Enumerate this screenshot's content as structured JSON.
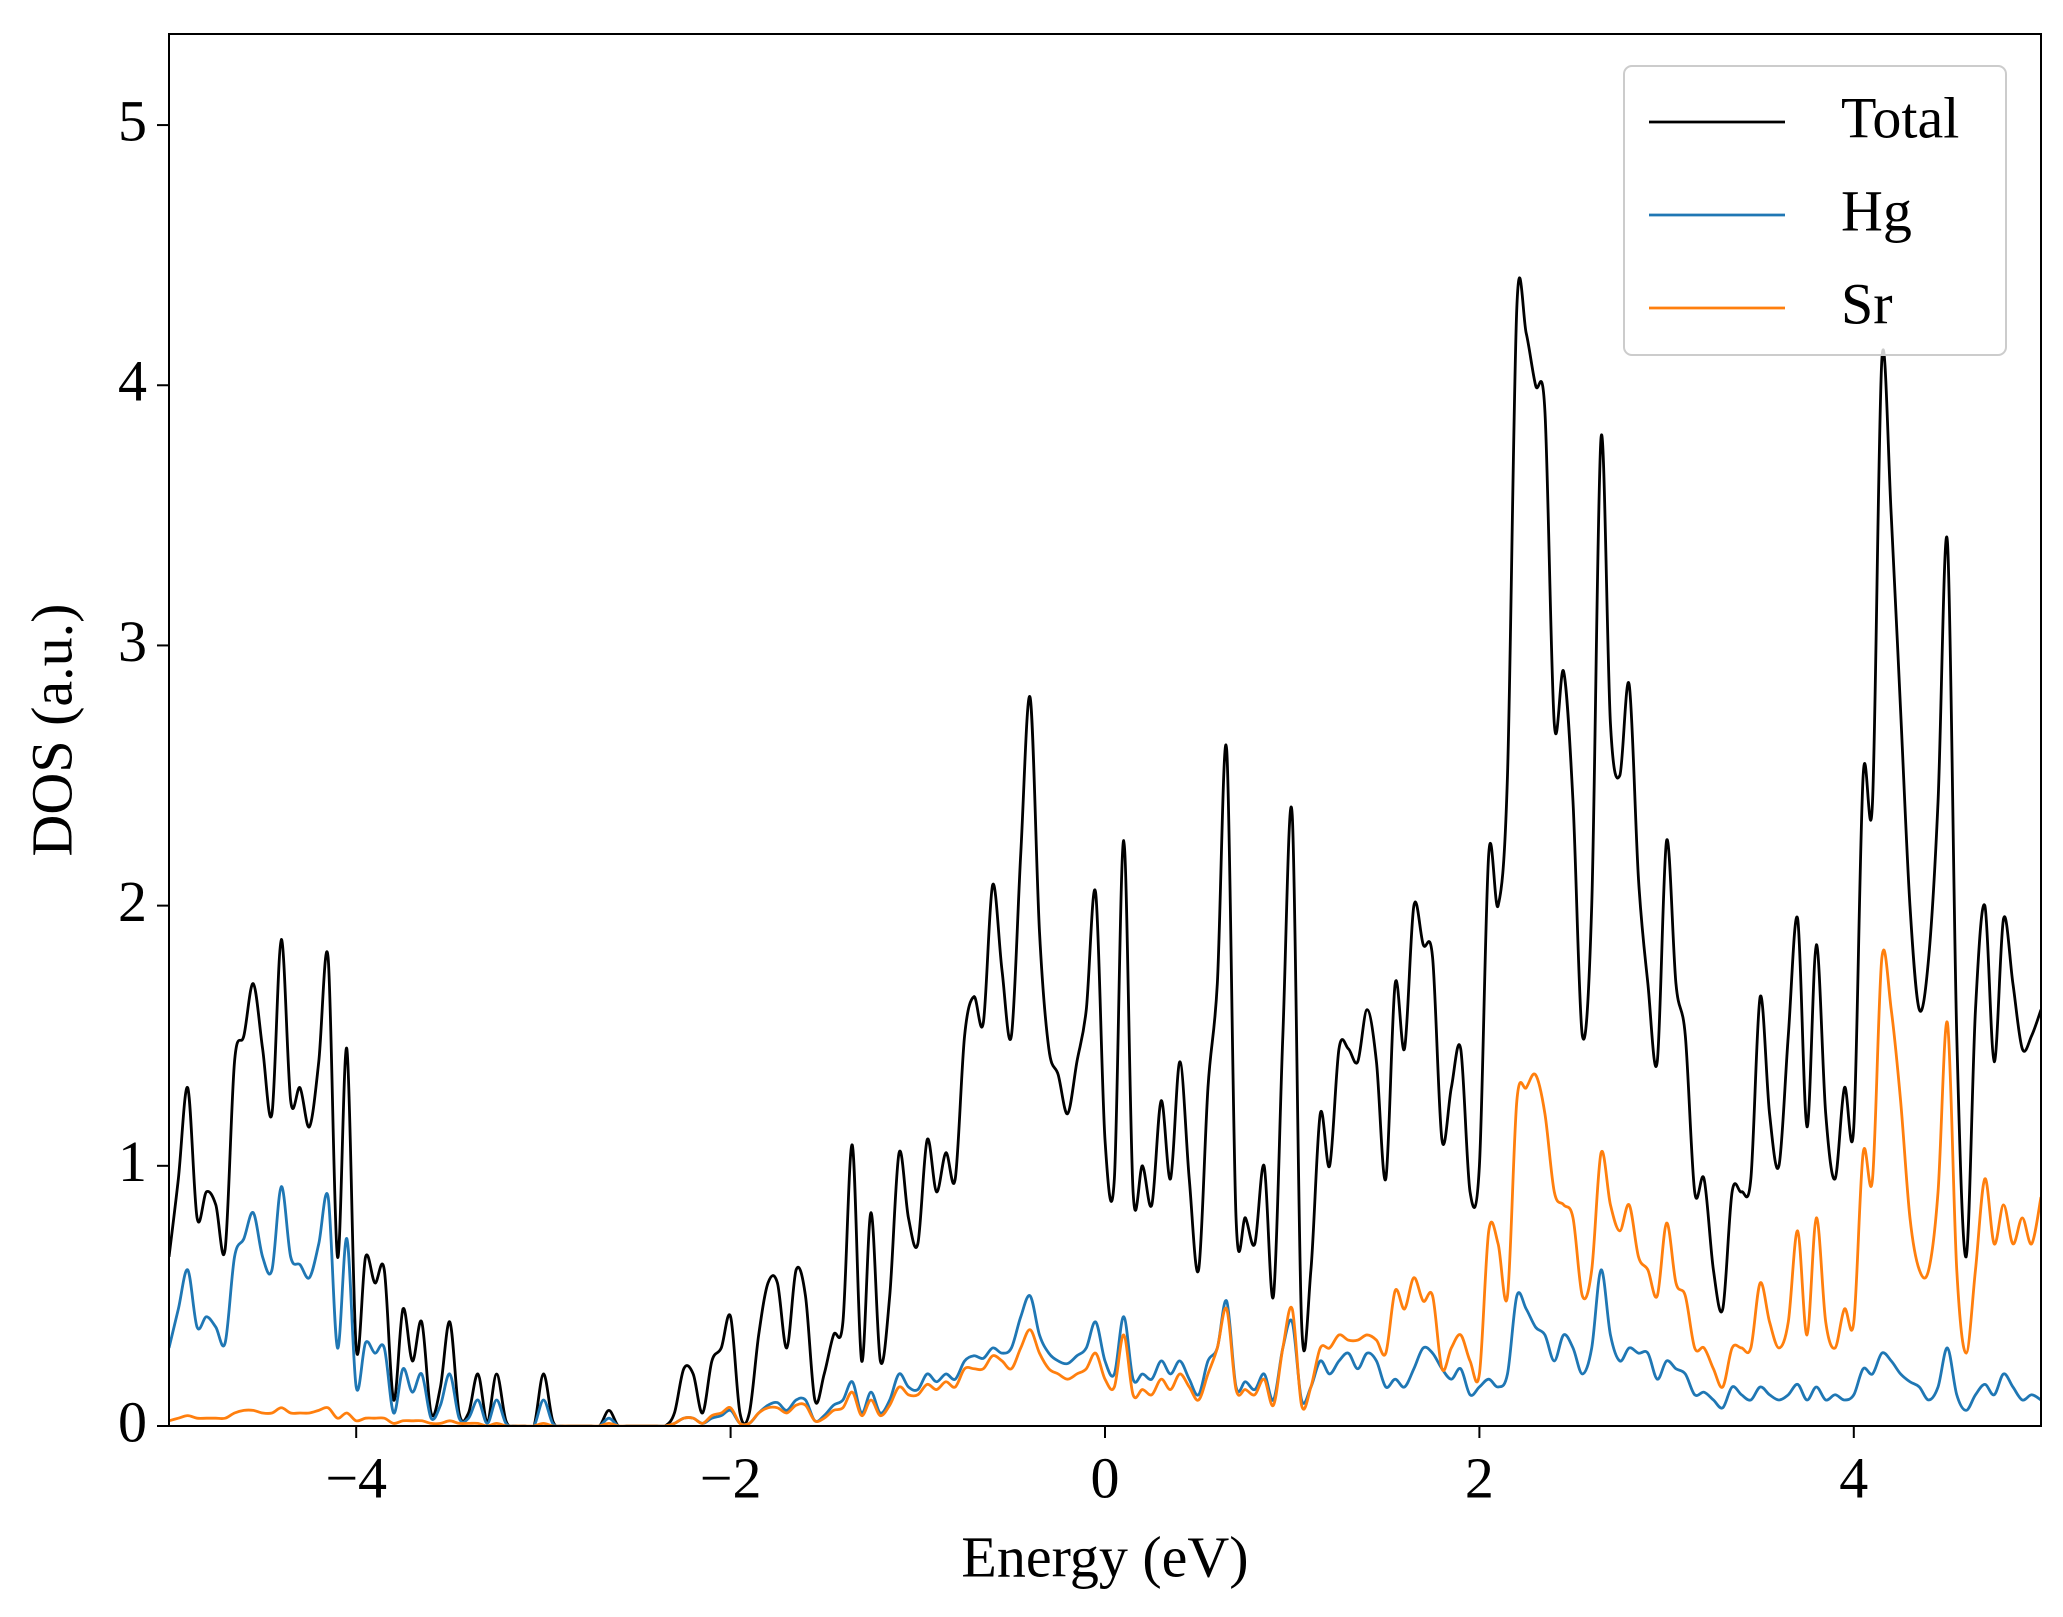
{
  "chart_data": {
    "type": "line",
    "xlabel": "Energy (eV)",
    "ylabel": "DOS (a.u.)",
    "xlim": [
      -5,
      5
    ],
    "ylim": [
      0,
      5.35
    ],
    "xticks": [
      {
        "value": -4,
        "label": "−4"
      },
      {
        "value": -2,
        "label": "−2"
      },
      0,
      2,
      4
    ],
    "yticks": [
      0,
      1,
      2,
      3,
      4,
      5
    ],
    "legend": "upper right",
    "x": [
      -5,
      -4.95,
      -4.9,
      -4.85,
      -4.8,
      -4.75,
      -4.7,
      -4.65,
      -4.6,
      -4.55,
      -4.5,
      -4.45,
      -4.4,
      -4.35,
      -4.3,
      -4.25,
      -4.2,
      -4.15,
      -4.1,
      -4.05,
      -4,
      -3.95,
      -3.9,
      -3.85,
      -3.8,
      -3.75,
      -3.7,
      -3.65,
      -3.6,
      -3.55,
      -3.5,
      -3.45,
      -3.4,
      -3.35,
      -3.3,
      -3.25,
      -3.2,
      -3.15,
      -3.1,
      -3.05,
      -3,
      -2.95,
      -2.9,
      -2.85,
      -2.8,
      -2.75,
      -2.7,
      -2.65,
      -2.6,
      -2.55,
      -2.5,
      -2.45,
      -2.4,
      -2.35,
      -2.3,
      -2.25,
      -2.2,
      -2.15,
      -2.1,
      -2.05,
      -2,
      -1.95,
      -1.9,
      -1.85,
      -1.8,
      -1.75,
      -1.7,
      -1.65,
      -1.6,
      -1.55,
      -1.5,
      -1.45,
      -1.4,
      -1.35,
      -1.3,
      -1.25,
      -1.2,
      -1.15,
      -1.1,
      -1.05,
      -1,
      -0.95,
      -0.9,
      -0.85,
      -0.8,
      -0.75,
      -0.7,
      -0.65,
      -0.6,
      -0.55,
      -0.5,
      -0.45,
      -0.4,
      -0.35,
      -0.3,
      -0.25,
      -0.2,
      -0.15,
      -0.1,
      -0.05,
      0,
      0.05,
      0.1,
      0.15,
      0.2,
      0.25,
      0.3,
      0.35,
      0.4,
      0.45,
      0.5,
      0.55,
      0.6,
      0.65,
      0.7,
      0.75,
      0.8,
      0.85,
      0.9,
      0.95,
      1,
      1.05,
      1.1,
      1.15,
      1.2,
      1.25,
      1.3,
      1.35,
      1.4,
      1.45,
      1.5,
      1.55,
      1.6,
      1.65,
      1.7,
      1.75,
      1.8,
      1.85,
      1.9,
      1.95,
      2,
      2.05,
      2.1,
      2.15,
      2.2,
      2.25,
      2.3,
      2.35,
      2.4,
      2.45,
      2.5,
      2.55,
      2.6,
      2.65,
      2.7,
      2.75,
      2.8,
      2.85,
      2.9,
      2.95,
      3,
      3.05,
      3.1,
      3.15,
      3.2,
      3.25,
      3.3,
      3.35,
      3.4,
      3.45,
      3.5,
      3.55,
      3.6,
      3.65,
      3.7,
      3.75,
      3.8,
      3.85,
      3.9,
      3.95,
      4,
      4.05,
      4.1,
      4.15,
      4.2,
      4.25,
      4.3,
      4.35,
      4.4,
      4.45,
      4.5,
      4.55,
      4.6,
      4.65,
      4.7,
      4.75,
      4.8,
      4.85,
      4.9,
      4.95,
      5
    ],
    "series": [
      {
        "name": "Total",
        "color": "#000000",
        "values": [
          0.65,
          0.95,
          1.3,
          0.8,
          0.9,
          0.85,
          0.68,
          1.4,
          1.5,
          1.7,
          1.45,
          1.2,
          1.87,
          1.25,
          1.3,
          1.15,
          1.4,
          1.8,
          0.65,
          1.45,
          0.3,
          0.65,
          0.55,
          0.6,
          0.1,
          0.45,
          0.25,
          0.4,
          0.05,
          0.15,
          0.4,
          0.05,
          0.05,
          0.2,
          0.02,
          0.2,
          0.02,
          0,
          0,
          0,
          0.2,
          0.02,
          0,
          0,
          0,
          0,
          0,
          0.06,
          0,
          0,
          0,
          0,
          0,
          0,
          0.05,
          0.22,
          0.2,
          0.05,
          0.25,
          0.3,
          0.42,
          0.05,
          0.05,
          0.35,
          0.55,
          0.55,
          0.3,
          0.6,
          0.5,
          0.1,
          0.2,
          0.35,
          0.4,
          1.08,
          0.25,
          0.82,
          0.25,
          0.5,
          1.05,
          0.8,
          0.7,
          1.1,
          0.9,
          1.05,
          0.95,
          1.5,
          1.65,
          1.55,
          2.08,
          1.75,
          1.5,
          2.2,
          2.8,
          1.9,
          1.45,
          1.35,
          1.2,
          1.4,
          1.6,
          2.05,
          1.1,
          0.95,
          2.25,
          0.9,
          1.0,
          0.85,
          1.25,
          0.95,
          1.4,
          0.95,
          0.6,
          1.3,
          1.7,
          2.6,
          0.8,
          0.8,
          0.7,
          1.0,
          0.5,
          1.5,
          2.35,
          0.4,
          0.6,
          1.2,
          1.0,
          1.45,
          1.45,
          1.4,
          1.6,
          1.4,
          0.95,
          1.7,
          1.45,
          2.0,
          1.85,
          1.8,
          1.1,
          1.3,
          1.45,
          0.9,
          1.0,
          2.2,
          2.0,
          2.5,
          4.3,
          4.2,
          4.0,
          3.9,
          2.7,
          2.9,
          2.4,
          1.5,
          2.0,
          3.8,
          2.7,
          2.5,
          2.85,
          2.1,
          1.7,
          1.4,
          2.25,
          1.7,
          1.5,
          0.9,
          0.95,
          0.6,
          0.45,
          0.9,
          0.9,
          0.95,
          1.65,
          1.2,
          1.0,
          1.5,
          1.95,
          1.15,
          1.85,
          1.2,
          0.95,
          1.3,
          1.15,
          2.5,
          2.4,
          4.1,
          3.5,
          2.75,
          2.0,
          1.6,
          1.8,
          2.4,
          3.4,
          1.5,
          0.65,
          1.6,
          2.0,
          1.4,
          1.95,
          1.7,
          1.45,
          1.5,
          1.6
        ]
      },
      {
        "name": "Hg",
        "color": "#1f77b4",
        "values": [
          0.3,
          0.45,
          0.6,
          0.38,
          0.42,
          0.38,
          0.32,
          0.65,
          0.72,
          0.82,
          0.65,
          0.6,
          0.92,
          0.65,
          0.62,
          0.57,
          0.7,
          0.88,
          0.3,
          0.72,
          0.15,
          0.32,
          0.28,
          0.3,
          0.05,
          0.22,
          0.13,
          0.2,
          0.03,
          0.08,
          0.2,
          0.03,
          0.03,
          0.1,
          0.01,
          0.1,
          0.01,
          0,
          0,
          0,
          0.1,
          0.01,
          0,
          0,
          0,
          0,
          0,
          0.03,
          0,
          0,
          0,
          0,
          0,
          0,
          0.01,
          0.03,
          0.03,
          0.01,
          0.03,
          0.04,
          0.06,
          0.01,
          0.01,
          0.05,
          0.08,
          0.09,
          0.06,
          0.1,
          0.1,
          0.02,
          0.04,
          0.08,
          0.1,
          0.17,
          0.05,
          0.13,
          0.05,
          0.1,
          0.2,
          0.15,
          0.14,
          0.2,
          0.17,
          0.2,
          0.18,
          0.25,
          0.27,
          0.26,
          0.3,
          0.28,
          0.3,
          0.42,
          0.5,
          0.35,
          0.28,
          0.25,
          0.24,
          0.27,
          0.3,
          0.4,
          0.25,
          0.2,
          0.42,
          0.18,
          0.2,
          0.18,
          0.25,
          0.2,
          0.25,
          0.18,
          0.12,
          0.25,
          0.3,
          0.48,
          0.15,
          0.17,
          0.14,
          0.2,
          0.1,
          0.3,
          0.4,
          0.1,
          0.15,
          0.25,
          0.2,
          0.25,
          0.28,
          0.22,
          0.28,
          0.25,
          0.15,
          0.18,
          0.15,
          0.22,
          0.3,
          0.28,
          0.22,
          0.18,
          0.22,
          0.12,
          0.15,
          0.18,
          0.15,
          0.2,
          0.5,
          0.45,
          0.38,
          0.35,
          0.25,
          0.35,
          0.3,
          0.2,
          0.3,
          0.6,
          0.35,
          0.25,
          0.3,
          0.28,
          0.28,
          0.18,
          0.25,
          0.22,
          0.2,
          0.12,
          0.13,
          0.1,
          0.07,
          0.15,
          0.12,
          0.1,
          0.15,
          0.12,
          0.1,
          0.12,
          0.16,
          0.1,
          0.15,
          0.1,
          0.12,
          0.1,
          0.12,
          0.22,
          0.2,
          0.28,
          0.25,
          0.2,
          0.17,
          0.15,
          0.1,
          0.15,
          0.3,
          0.12,
          0.06,
          0.12,
          0.16,
          0.12,
          0.2,
          0.15,
          0.1,
          0.12,
          0.1
        ]
      },
      {
        "name": "Sr",
        "color": "#ff7f0e",
        "values": [
          0.02,
          0.03,
          0.04,
          0.03,
          0.03,
          0.03,
          0.03,
          0.05,
          0.06,
          0.06,
          0.05,
          0.05,
          0.07,
          0.05,
          0.05,
          0.05,
          0.06,
          0.07,
          0.03,
          0.05,
          0.02,
          0.03,
          0.03,
          0.03,
          0.01,
          0.02,
          0.02,
          0.02,
          0.01,
          0.01,
          0.02,
          0.01,
          0.01,
          0.01,
          0,
          0.01,
          0,
          0,
          0,
          0,
          0.01,
          0,
          0,
          0,
          0,
          0,
          0,
          0.01,
          0,
          0,
          0,
          0,
          0,
          0,
          0.01,
          0.03,
          0.03,
          0.01,
          0.04,
          0.05,
          0.07,
          0.01,
          0.01,
          0.05,
          0.07,
          0.07,
          0.05,
          0.08,
          0.08,
          0.02,
          0.03,
          0.06,
          0.07,
          0.13,
          0.04,
          0.1,
          0.04,
          0.08,
          0.15,
          0.12,
          0.12,
          0.16,
          0.14,
          0.17,
          0.15,
          0.22,
          0.22,
          0.22,
          0.27,
          0.25,
          0.22,
          0.3,
          0.37,
          0.28,
          0.22,
          0.2,
          0.18,
          0.2,
          0.22,
          0.28,
          0.18,
          0.15,
          0.35,
          0.12,
          0.14,
          0.12,
          0.18,
          0.14,
          0.2,
          0.15,
          0.1,
          0.2,
          0.3,
          0.45,
          0.14,
          0.14,
          0.12,
          0.18,
          0.08,
          0.3,
          0.45,
          0.08,
          0.15,
          0.3,
          0.3,
          0.35,
          0.33,
          0.33,
          0.35,
          0.33,
          0.28,
          0.52,
          0.45,
          0.57,
          0.48,
          0.5,
          0.22,
          0.3,
          0.35,
          0.25,
          0.2,
          0.75,
          0.7,
          0.5,
          1.25,
          1.3,
          1.35,
          1.2,
          0.9,
          0.85,
          0.8,
          0.5,
          0.6,
          1.05,
          0.85,
          0.75,
          0.85,
          0.65,
          0.6,
          0.5,
          0.78,
          0.55,
          0.5,
          0.3,
          0.3,
          0.22,
          0.15,
          0.3,
          0.3,
          0.3,
          0.55,
          0.4,
          0.3,
          0.4,
          0.75,
          0.35,
          0.8,
          0.4,
          0.3,
          0.45,
          0.4,
          1.05,
          0.95,
          1.8,
          1.6,
          1.25,
          0.8,
          0.6,
          0.6,
          0.9,
          1.55,
          0.6,
          0.28,
          0.6,
          0.95,
          0.7,
          0.85,
          0.7,
          0.8,
          0.7,
          0.88
        ]
      }
    ]
  }
}
